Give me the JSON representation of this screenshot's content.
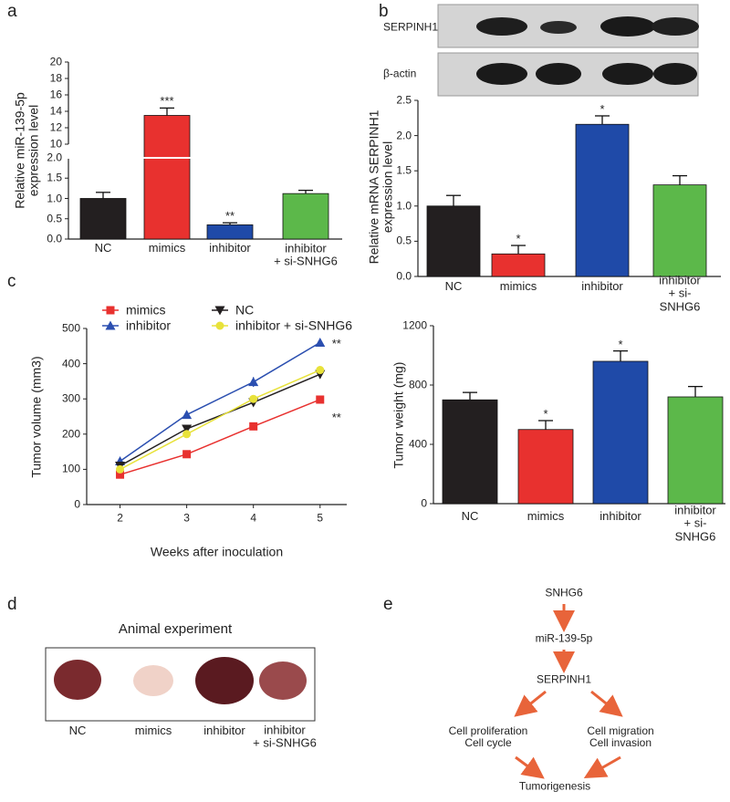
{
  "panels": [
    "a",
    "b",
    "c",
    "d",
    "e"
  ],
  "chart_data": [
    {
      "type": "bar",
      "y_label": "Relative miR-139-5p\nexpression level",
      "categories": [
        "NC",
        "mimics",
        "inhibitor",
        "inhibitor\n+ si-SNHG6"
      ],
      "values": [
        1.0,
        13.5,
        0.35,
        1.12
      ],
      "errors": [
        0.15,
        0.9,
        0.05,
        0.08
      ],
      "colors": [
        "#231f20",
        "#e8312f",
        "#1f4aa8",
        "#5cb84a"
      ],
      "ysegments": [
        {
          "ylim": [
            0,
            2
          ],
          "yticks": [
            {
              "value": 0,
              "label": "0.0"
            },
            {
              "value": 0.5,
              "label": "0.5"
            },
            {
              "value": 1,
              "label": "1.0"
            },
            {
              "value": 1.5,
              "label": "1.5"
            },
            {
              "value": 2,
              "label": "2.0"
            }
          ]
        },
        {
          "ylim": [
            10,
            20
          ],
          "yticks": [
            10,
            12,
            14,
            16,
            18,
            20
          ]
        }
      ],
      "annotations": [
        {
          "index": 1,
          "text": "***"
        },
        {
          "index": 2,
          "text": "**"
        }
      ]
    },
    {
      "type": "bar",
      "y_label": "Relative mRNA SERPINH1\nexpression level",
      "categories": [
        "NC",
        "mimics",
        "inhibitor",
        "inhibitor\n+ si-SNHG6"
      ],
      "values": [
        1.0,
        0.32,
        2.16,
        1.3
      ],
      "errors": [
        0.15,
        0.12,
        0.12,
        0.13
      ],
      "colors": [
        "#231f20",
        "#e8312f",
        "#1f4aa8",
        "#5cb84a"
      ],
      "ysegments": [
        {
          "ylim": [
            0,
            2.5
          ],
          "yticks": [
            {
              "value": 0,
              "label": "0.0"
            },
            {
              "value": 0.5,
              "label": "0.5"
            },
            {
              "value": 1,
              "label": "1.0"
            },
            {
              "value": 1.5,
              "label": "1.5"
            },
            {
              "value": 2,
              "label": "2.0"
            },
            {
              "value": 2.5,
              "label": "2.5"
            }
          ]
        }
      ],
      "annotations": [
        {
          "index": 1,
          "text": "*"
        },
        {
          "index": 2,
          "text": "*"
        }
      ]
    },
    {
      "type": "line",
      "x_label": "Weeks after inoculation",
      "y_label": "Tumor volume (mm3)",
      "x": [
        2,
        3,
        4,
        5
      ],
      "xlim": [
        1.5,
        5.4
      ],
      "xticks": [
        2,
        3,
        4,
        5
      ],
      "ylim": [
        0,
        500
      ],
      "yticks": [
        0,
        100,
        200,
        300,
        400,
        500
      ],
      "series": [
        {
          "name": "mimics",
          "color": "#e8312f",
          "marker": "square",
          "values": [
            85,
            143,
            222,
            298
          ],
          "errors": [
            6,
            8,
            10,
            10
          ]
        },
        {
          "name": "inhibitor",
          "color": "#2b4fb0",
          "marker": "triangle-up",
          "values": [
            123,
            255,
            348,
            460
          ],
          "errors": [
            8,
            10,
            14,
            10
          ]
        },
        {
          "name": "NC",
          "color": "#231f20",
          "marker": "triangle-down",
          "values": [
            110,
            215,
            290,
            370
          ],
          "errors": [
            6,
            8,
            10,
            12
          ]
        },
        {
          "name": "inhibitor + si-SNHG6",
          "color": "#e8e23a",
          "marker": "circle",
          "values": [
            100,
            200,
            300,
            382
          ],
          "errors": [
            6,
            8,
            10,
            10
          ]
        }
      ],
      "annotations": [
        {
          "series": 1,
          "index": 3,
          "text": "**"
        },
        {
          "series": 0,
          "index": 3,
          "text": "**"
        }
      ]
    },
    {
      "type": "bar",
      "y_label": "Tumor weight (mg)",
      "categories": [
        "NC",
        "mimics",
        "inhibitor",
        "inhibitor\n+ si-SNHG6"
      ],
      "values": [
        700,
        500,
        960,
        720
      ],
      "errors": [
        50,
        60,
        70,
        70
      ],
      "colors": [
        "#231f20",
        "#e8312f",
        "#1f4aa8",
        "#5cb84a"
      ],
      "ysegments": [
        {
          "ylim": [
            0,
            1200
          ],
          "yticks": [
            0,
            400,
            800,
            1200
          ]
        }
      ],
      "annotations": [
        {
          "index": 1,
          "text": "*"
        },
        {
          "index": 2,
          "text": "*"
        }
      ]
    }
  ],
  "blot": {
    "rows": [
      "SERPINH1",
      "β-actin"
    ]
  },
  "animal_experiment": {
    "title": "Animal experiment",
    "labels": [
      "NC",
      "mimics",
      "inhibitor",
      "inhibitor\n+ si-SNHG6"
    ]
  },
  "pathway": {
    "nodes": [
      "SNHG6",
      "miR-139-5p",
      "SERPINH1",
      "Cell proliferation\nCell cycle",
      "Cell migration\nCell invasion",
      "Tumorigenesis"
    ]
  }
}
